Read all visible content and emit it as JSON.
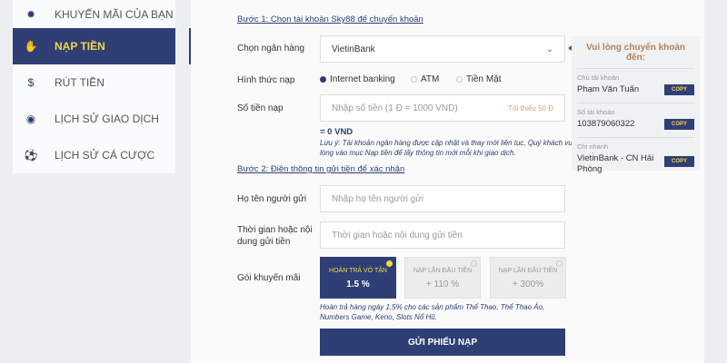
{
  "sidebar": {
    "items": [
      {
        "label": "KHUYẾN MÃI CỦA BẠN",
        "icon": "promo-badge-icon",
        "active": false
      },
      {
        "label": "NẠP TIỀN",
        "icon": "deposit-hand-icon",
        "active": true
      },
      {
        "label": "RÚT TIỀN",
        "icon": "withdraw-hand-icon",
        "active": false
      },
      {
        "label": "LỊCH SỬ GIAO DỊCH",
        "icon": "coin-history-icon",
        "active": false
      },
      {
        "label": "LỊCH SỬ CÁ CƯỢC",
        "icon": "soccer-ball-icon",
        "active": false
      }
    ]
  },
  "form": {
    "step1": "Bước 1: Chọn tài khoản Sky88 để chuyển khoản",
    "bank_label": "Chọn ngân hàng",
    "bank_value": "VietinBank",
    "method_label": "Hình thức nạp",
    "methods": [
      "Internet banking",
      "ATM",
      "Tiền Mặt"
    ],
    "method_selected": "Internet banking",
    "amount_label": "Số tiền nạp",
    "amount_placeholder": "Nhập số tiền (1 Đ = 1000 VND)",
    "amount_min": "Tối thiểu 50 Đ",
    "amount_converted": "= 0 VND",
    "note": "Lưu ý: Tài khoản ngân hàng được cập nhật và thay mới liên tục, Quý khách vui lòng vào mục Nạp tiền để lấy thông tin mới mỗi khi giao dịch.",
    "step2": "Bước 2: Điền thông tin gửi tiền để xác nhận",
    "sender_label": "Họ tên người gửi",
    "sender_placeholder": "Nhập họ tên người gửi",
    "time_label": "Thời gian hoặc nội dung gửi tiền",
    "time_placeholder": "Thời gian hoặc nội dung gửi tiền",
    "promo_label": "Gói khuyến mãi",
    "promos": [
      {
        "title": "HOÀN TRẢ VÔ TẬN",
        "value": "1.5 %"
      },
      {
        "title": "NẠP LẦN ĐẦU TIÊN",
        "value": "+ 110 %"
      },
      {
        "title": "NẠP LẦN ĐẦU TIÊN",
        "value": "+ 300%"
      }
    ],
    "promo_note": "Hoàn trả hàng ngày 1,5% cho các sản phẩm Thể Thao, Thể Thao Ảo, Numbers Game, Keno, Slots Nổ Hũ.",
    "submit": "GỬI PHIẾU NẠP"
  },
  "info": {
    "title": "Vui lòng chuyển khoản đến:",
    "rows": [
      {
        "key": "Chủ tài khoản",
        "value": "Phạm Văn Tuấn",
        "copy": "COPY"
      },
      {
        "key": "Số tài khoản",
        "value": "103879060322",
        "copy": "COPY"
      },
      {
        "key": "Chi nhánh",
        "value": "VietinBank - CN Hải Phòng",
        "copy": "COPY"
      }
    ]
  },
  "colors": {
    "primary": "#2f3f75",
    "accent": "#f2d54a"
  }
}
